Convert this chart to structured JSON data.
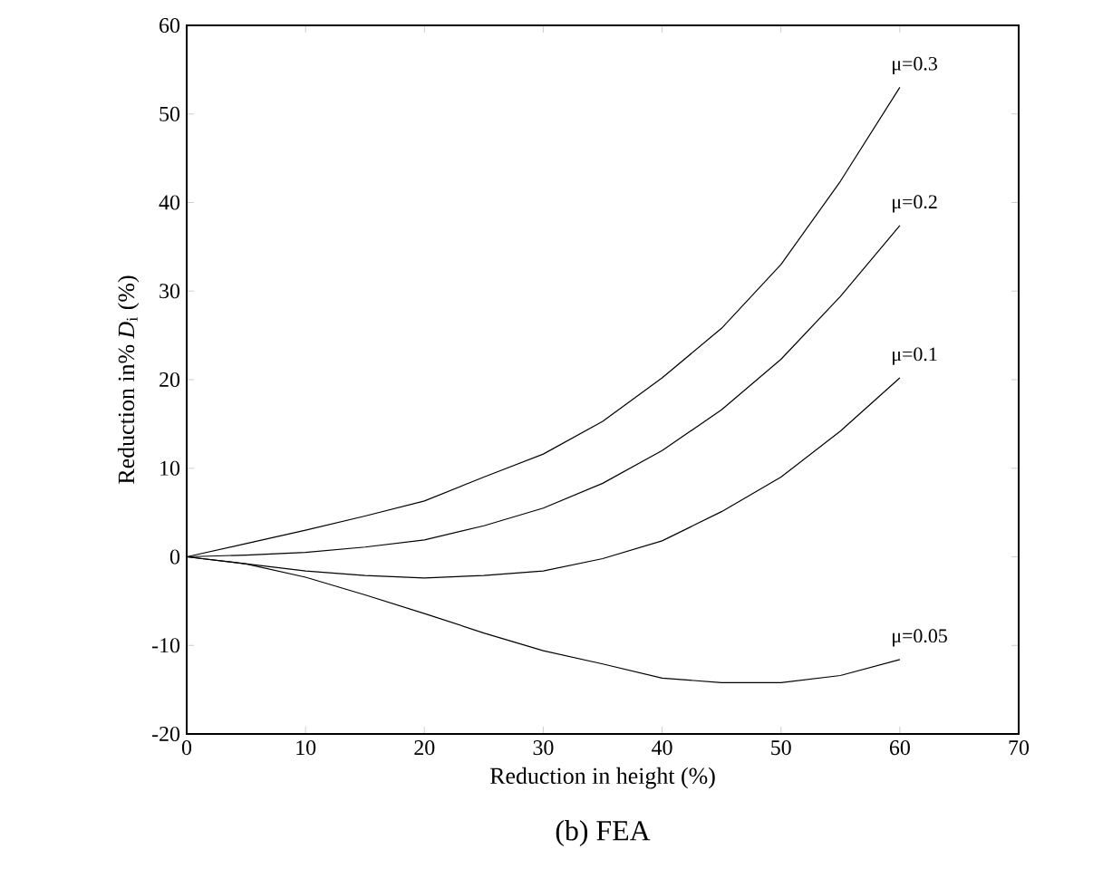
{
  "chart_data": {
    "type": "line",
    "title": "(b) FEA",
    "xlabel": "Reduction in height (%)",
    "ylabel": "Reduction in% *D*$_{i}$ (%)",
    "x": [
      0,
      5,
      10,
      15,
      20,
      25,
      30,
      35,
      40,
      45,
      50,
      55,
      60
    ],
    "series": [
      {
        "name": "μ=0.3",
        "color": "#000000",
        "values": [
          0,
          1.5,
          3.0,
          4.6,
          6.3,
          9.0,
          11.6,
          15.3,
          20.2,
          25.8,
          33.0,
          42.4,
          53.0
        ]
      },
      {
        "name": "μ=0.2",
        "color": "#000000",
        "values": [
          0,
          0.2,
          0.5,
          1.1,
          1.9,
          3.5,
          5.5,
          8.3,
          12.0,
          16.6,
          22.3,
          29.4,
          37.4
        ]
      },
      {
        "name": "μ=0.1",
        "color": "#000000",
        "values": [
          0,
          -0.8,
          -1.6,
          -2.1,
          -2.4,
          -2.1,
          -1.6,
          -0.2,
          1.8,
          5.1,
          9.0,
          14.2,
          20.2
        ]
      },
      {
        "name": "μ=0.05",
        "color": "#000000",
        "values": [
          0,
          -0.8,
          -2.3,
          -4.3,
          -6.4,
          -8.6,
          -10.6,
          -12.1,
          -13.7,
          -14.2,
          -14.2,
          -13.4,
          -11.6
        ]
      }
    ],
    "xlim": [
      0,
      70
    ],
    "ylim": [
      -20,
      60
    ],
    "xticks": [
      0,
      10,
      20,
      30,
      40,
      50,
      60,
      70
    ],
    "yticks": [
      -20,
      -10,
      0,
      10,
      20,
      30,
      40,
      50,
      60
    ],
    "grid": false,
    "legend": false,
    "marker": "none",
    "line_style": "solid"
  }
}
